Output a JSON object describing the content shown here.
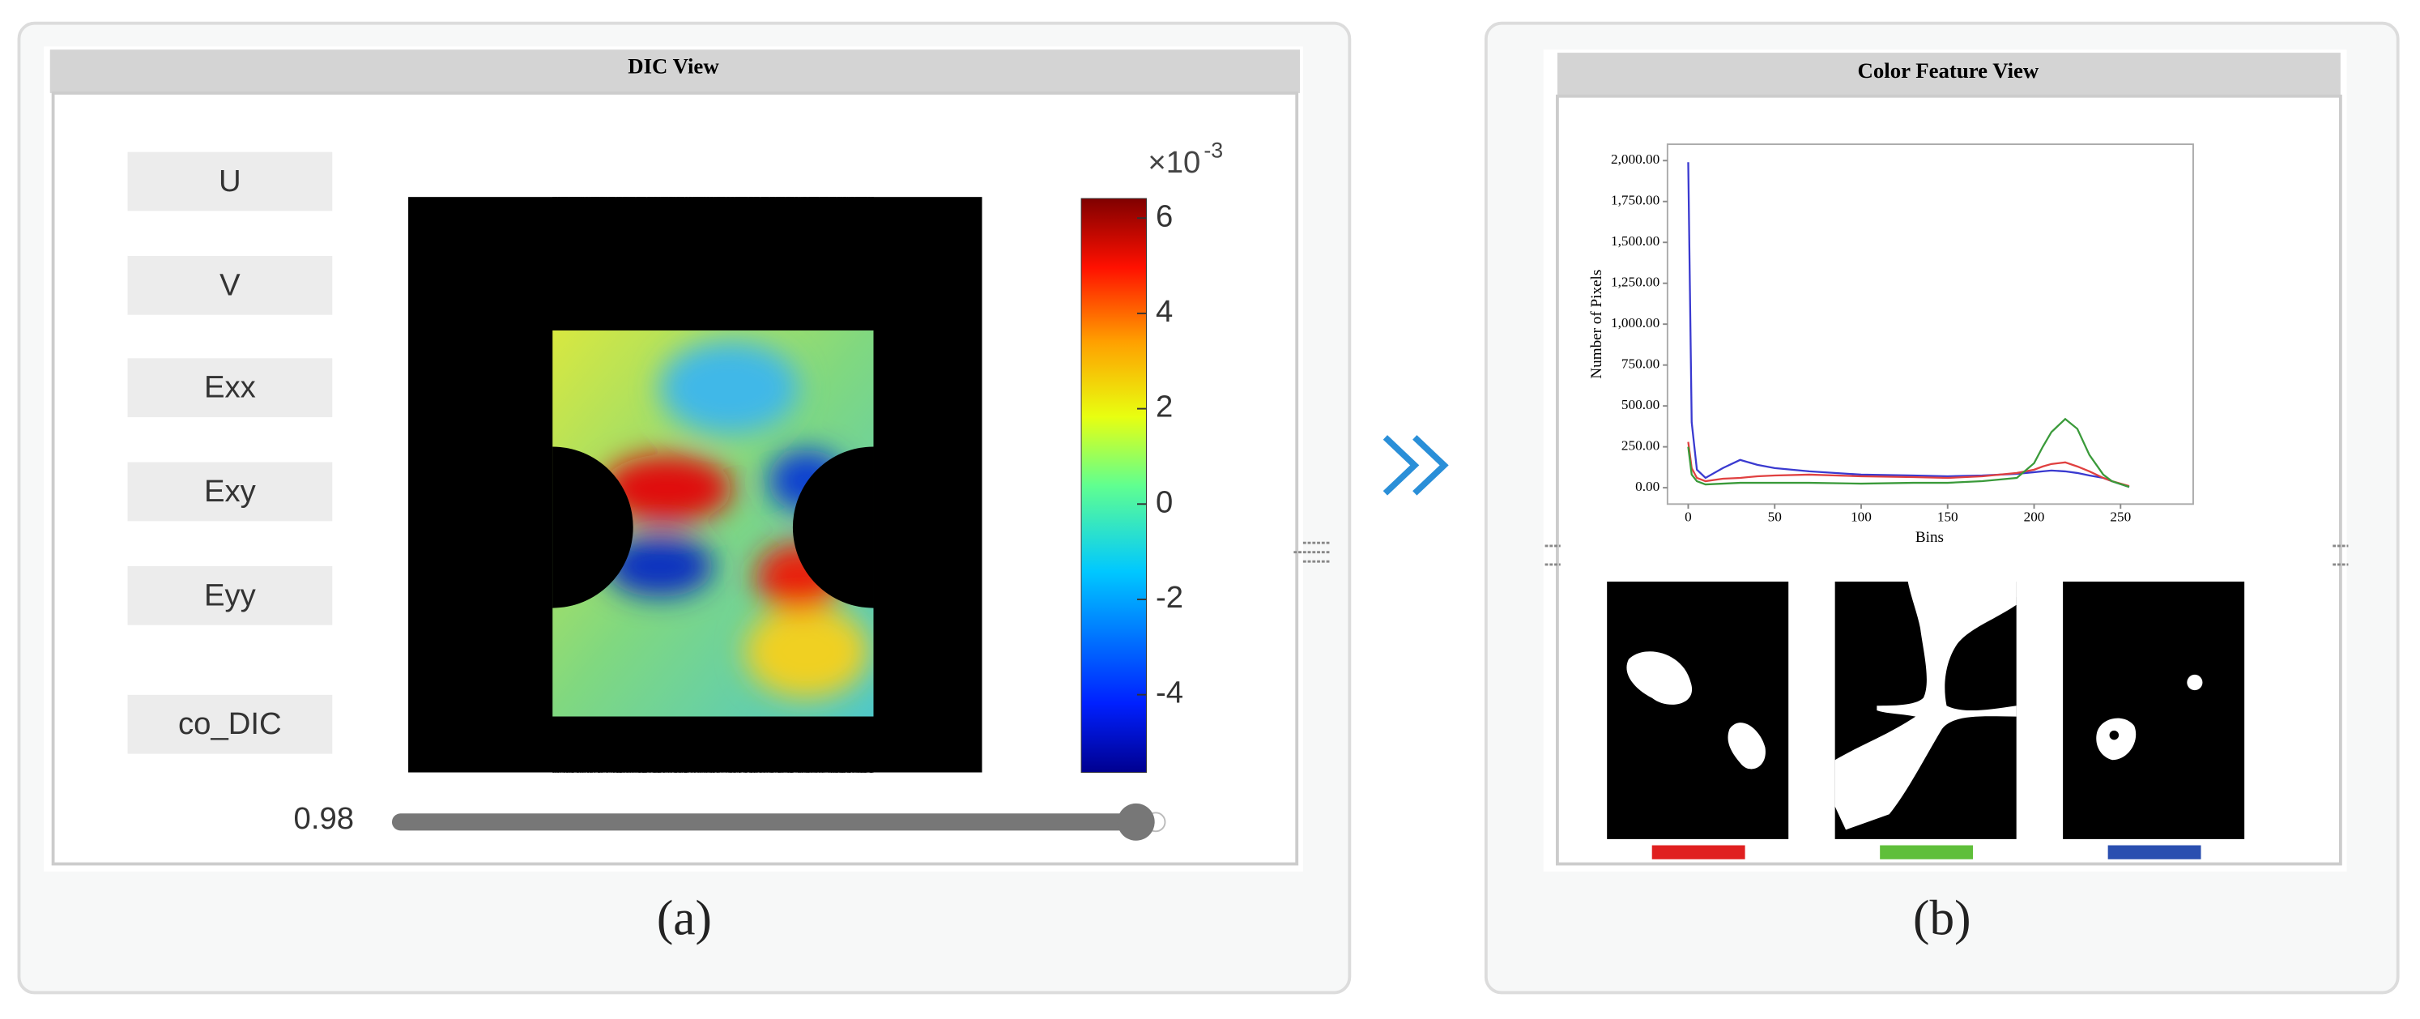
{
  "dic_view": {
    "title": "DIC View",
    "buttons": [
      "U",
      "V",
      "Exx",
      "Exy",
      "Eyy",
      "co_DIC"
    ],
    "colorbar": {
      "exponent_base": "×10",
      "exponent": "-3",
      "lim": [
        -5.63,
        6.41
      ],
      "ticks": [
        6,
        4,
        2,
        0,
        -2,
        -4
      ]
    },
    "slider": {
      "value": 0.98
    },
    "caption": "(a)"
  },
  "color_feature_view": {
    "title": "Color Feature View",
    "caption": "(b)"
  },
  "chart_data": {
    "type": "line",
    "ylabel": "Number of Pixels",
    "xlabel": "Bins",
    "x": [
      0,
      2,
      5,
      10,
      20,
      30,
      40,
      50,
      70,
      100,
      130,
      150,
      170,
      190,
      200,
      205,
      210,
      218,
      225,
      232,
      240,
      245,
      255
    ],
    "series": [
      {
        "color": "#3a3ad0",
        "values": [
          1990,
          400,
          110,
          60,
          120,
          170,
          140,
          120,
          100,
          80,
          75,
          70,
          75,
          85,
          95,
          100,
          105,
          100,
          90,
          75,
          60,
          40,
          5
        ]
      },
      {
        "color": "#e04040",
        "values": [
          280,
          120,
          60,
          40,
          55,
          60,
          70,
          75,
          80,
          70,
          65,
          60,
          70,
          90,
          110,
          130,
          145,
          155,
          130,
          100,
          60,
          40,
          10
        ]
      },
      {
        "color": "#3a9a3a",
        "values": [
          250,
          80,
          40,
          20,
          25,
          30,
          30,
          30,
          30,
          25,
          30,
          30,
          40,
          60,
          150,
          250,
          340,
          420,
          360,
          200,
          80,
          40,
          5
        ]
      }
    ],
    "xlim": [
      -12,
      292
    ],
    "ylim": [
      -100,
      2100
    ],
    "xticks": [
      0,
      50,
      100,
      150,
      200,
      250
    ],
    "yticks": [
      {
        "value": 0,
        "label": "0.00"
      },
      {
        "value": 250,
        "label": "250.00"
      },
      {
        "value": 500,
        "label": "500.00"
      },
      {
        "value": 750,
        "label": "750.00"
      },
      {
        "value": 1000,
        "label": "1,000.00"
      },
      {
        "value": 1250,
        "label": "1,250.00"
      },
      {
        "value": 1500,
        "label": "1,500.00"
      },
      {
        "value": 1750,
        "label": "1,750.00"
      },
      {
        "value": 2000,
        "label": "2,000.00"
      }
    ]
  }
}
